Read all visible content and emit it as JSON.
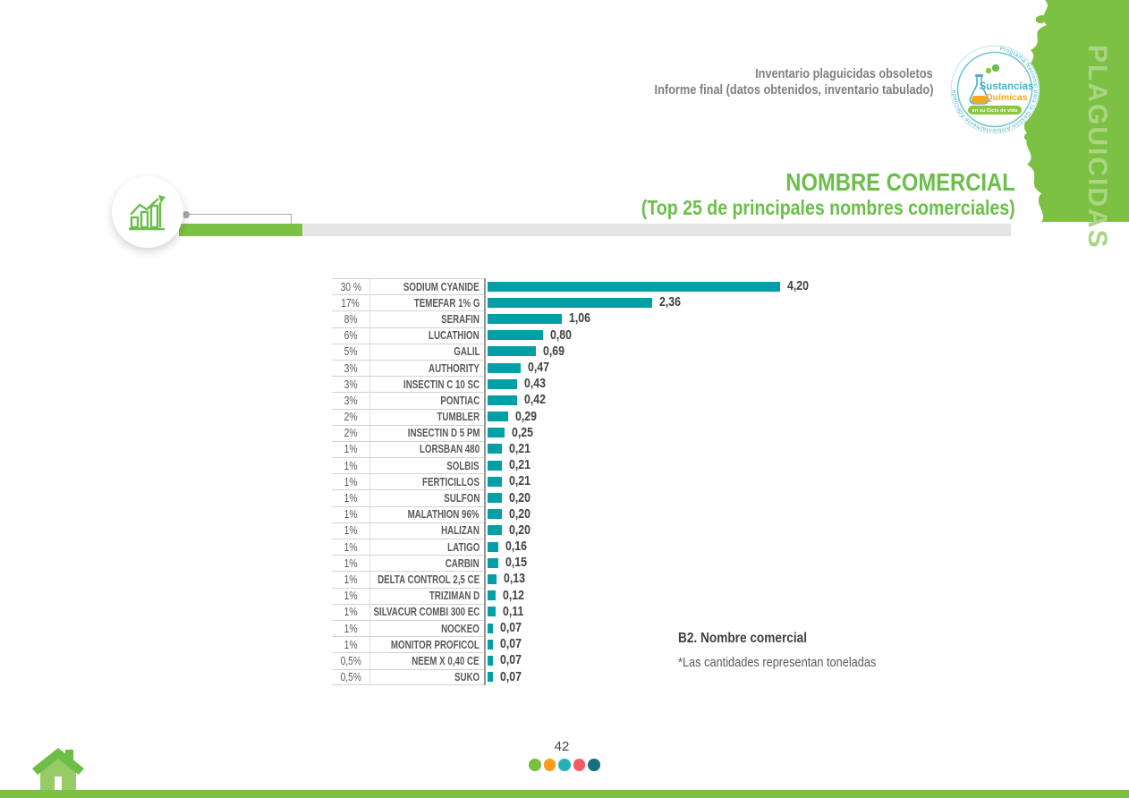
{
  "page": {
    "header": {
      "line1": "Inventario plaguicidas obsoletos",
      "line2": "Informe final (datos obtenidos, inventario tabulado)"
    },
    "side_tab": "PLAGUICIDAS",
    "logo": {
      "ring_text": "Programa Nacional para la Gestión Ambientalmente Adecuada",
      "name_line1": "Sustancias",
      "name_line2": "Químicas",
      "banner": "en su Ciclo de vida"
    },
    "title": "NOMBRE COMERCIAL",
    "subtitle": "(Top 25 de principales nombres comerciales)",
    "caption_title": "B2. Nombre comercial",
    "caption_note": "*Las cantidades representan toneladas",
    "page_number": "42"
  },
  "chart_data": {
    "type": "bar",
    "orientation": "horizontal",
    "title": "NOMBRE COMERCIAL (Top 25 de principales nombres comerciales)",
    "note": "*Las cantidades representan toneladas",
    "unit": "toneladas",
    "max_value": 4.2,
    "bar_color": "#009ea6",
    "rows": [
      {
        "percent": "30 %",
        "name": "SODIUM CYANIDE",
        "value": 4.2,
        "label": "4,20"
      },
      {
        "percent": "17%",
        "name": "TEMEFAR 1% G",
        "value": 2.36,
        "label": "2,36"
      },
      {
        "percent": "8%",
        "name": "SERAFIN",
        "value": 1.06,
        "label": "1,06"
      },
      {
        "percent": "6%",
        "name": "LUCATHION",
        "value": 0.8,
        "label": "0,80"
      },
      {
        "percent": "5%",
        "name": "GALIL",
        "value": 0.69,
        "label": "0,69"
      },
      {
        "percent": "3%",
        "name": "AUTHORITY",
        "value": 0.47,
        "label": "0,47"
      },
      {
        "percent": "3%",
        "name": "INSECTIN C 10 SC",
        "value": 0.43,
        "label": "0,43"
      },
      {
        "percent": "3%",
        "name": "PONTIAC",
        "value": 0.42,
        "label": "0,42"
      },
      {
        "percent": "2%",
        "name": "TUMBLER",
        "value": 0.29,
        "label": "0,29"
      },
      {
        "percent": "2%",
        "name": "INSECTIN D 5 PM",
        "value": 0.25,
        "label": "0,25"
      },
      {
        "percent": "1%",
        "name": "LORSBAN 480",
        "value": 0.21,
        "label": "0,21"
      },
      {
        "percent": "1%",
        "name": "SOLBIS",
        "value": 0.21,
        "label": "0,21"
      },
      {
        "percent": "1%",
        "name": "FERTICILLOS",
        "value": 0.21,
        "label": "0,21"
      },
      {
        "percent": "1%",
        "name": "SULFON",
        "value": 0.2,
        "label": "0,20"
      },
      {
        "percent": "1%",
        "name": "MALATHION 96%",
        "value": 0.2,
        "label": "0,20"
      },
      {
        "percent": "1%",
        "name": "HALIZAN",
        "value": 0.2,
        "label": "0,20"
      },
      {
        "percent": "1%",
        "name": "LATIGO",
        "value": 0.16,
        "label": "0,16"
      },
      {
        "percent": "1%",
        "name": "CARBIN",
        "value": 0.15,
        "label": "0,15"
      },
      {
        "percent": "1%",
        "name": "DELTA CONTROL 2,5 CE",
        "value": 0.13,
        "label": "0,13"
      },
      {
        "percent": "1%",
        "name": "TRIZIMAN D",
        "value": 0.12,
        "label": "0,12"
      },
      {
        "percent": "1%",
        "name": "SILVACUR COMBI 300 EC",
        "value": 0.11,
        "label": "0,11"
      },
      {
        "percent": "1%",
        "name": "NOCKEO",
        "value": 0.07,
        "label": "0,07"
      },
      {
        "percent": "1%",
        "name": "MONITOR PROFICOL",
        "value": 0.07,
        "label": "0,07"
      },
      {
        "percent": "0,5%",
        "name": "NEEM X 0,40 CE",
        "value": 0.07,
        "label": "0,07"
      },
      {
        "percent": "0,5%",
        "name": "SUKO",
        "value": 0.07,
        "label": "0,07"
      }
    ]
  },
  "footer": {
    "dot_colors": [
      "#76c043",
      "#f89c1c",
      "#29afb7",
      "#f25a68",
      "#196e80"
    ]
  },
  "colors": {
    "accent_green": "#7cc143",
    "title_green": "#6cbe4b",
    "bar_teal": "#009ea6",
    "text_dark": "#414042",
    "text_gray": "#58595b"
  }
}
